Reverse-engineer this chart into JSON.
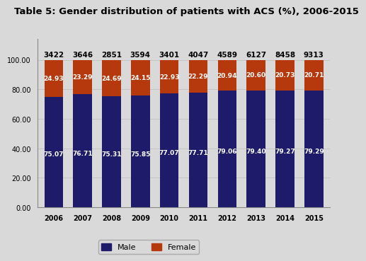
{
  "title": "Table 5: Gender distribution of patients with ACS (%), 2006-2015",
  "years": [
    "2006",
    "2007",
    "2008",
    "2009",
    "2010",
    "2011",
    "2012",
    "2013",
    "2014",
    "2015"
  ],
  "totals": [
    "3422",
    "3646",
    "2851",
    "3594",
    "3401",
    "4047",
    "4589",
    "6127",
    "8458",
    "9313"
  ],
  "male_pct": [
    75.07,
    76.71,
    75.31,
    75.85,
    77.07,
    77.71,
    79.06,
    79.4,
    79.27,
    79.29
  ],
  "female_pct": [
    24.93,
    23.29,
    24.69,
    24.15,
    22.93,
    22.29,
    20.94,
    20.6,
    20.73,
    20.71
  ],
  "male_color": "#1e1b6b",
  "female_color": "#b5390d",
  "bar_text_color": "#ffffff",
  "total_text_color": "#000000",
  "background_color": "#d9d9d9",
  "plot_bg_color": "#d9d9d9",
  "legend_male": "Male",
  "legend_female": "Female",
  "ylim": [
    0,
    100
  ],
  "yticks": [
    0.0,
    20.0,
    40.0,
    60.0,
    80.0,
    100.0
  ],
  "title_fontsize": 9.5,
  "bar_label_fontsize": 6.5,
  "total_label_fontsize": 7.5,
  "tick_fontsize": 7,
  "legend_fontsize": 8,
  "bar_width": 0.65
}
